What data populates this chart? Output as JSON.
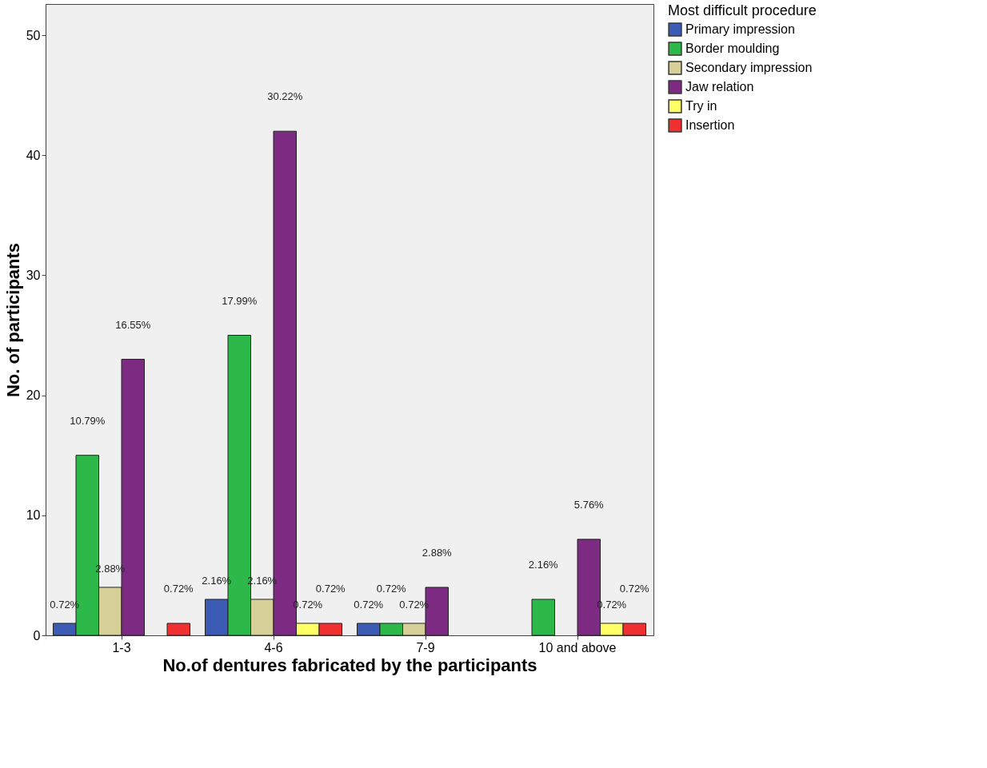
{
  "chart_data": {
    "type": "bar",
    "xlabel": "No.of dentures fabricated by the participants",
    "ylabel": "No. of participants",
    "legend_title": "Most difficult procedure",
    "categories": [
      "1-3",
      "4-6",
      "7-9",
      "10 and above"
    ],
    "series": [
      {
        "name": "Primary impression",
        "color": "#3b5bb5",
        "values": [
          1,
          3,
          1,
          null
        ]
      },
      {
        "name": "Border moulding",
        "color": "#2db84a",
        "values": [
          15,
          25,
          1,
          3
        ]
      },
      {
        "name": "Secondary impression",
        "color": "#d6cf98",
        "values": [
          4,
          3,
          1,
          null
        ]
      },
      {
        "name": "Jaw relation",
        "color": "#7d2a82",
        "values": [
          23,
          42,
          4,
          8
        ]
      },
      {
        "name": "Try in",
        "color": "#ffff66",
        "values": [
          null,
          1,
          null,
          1
        ]
      },
      {
        "name": "Insertion",
        "color": "#f03030",
        "values": [
          1,
          1,
          null,
          1
        ]
      }
    ],
    "annotations": [
      "0.72%",
      "2.16%",
      "0.72%",
      "10.79%",
      "17.99%",
      "0.72%",
      "2.16%",
      "2.88%",
      "2.16%",
      "0.72%",
      "16.55%",
      "30.22%",
      "2.88%",
      "5.76%",
      "0.72%",
      "0.72%",
      "0.72%",
      "0.72%",
      "0.72%"
    ],
    "ylim": [
      0,
      52.6
    ],
    "yticks": [
      0,
      10,
      20,
      30,
      40,
      50
    ],
    "grid": false,
    "legend": "right"
  }
}
